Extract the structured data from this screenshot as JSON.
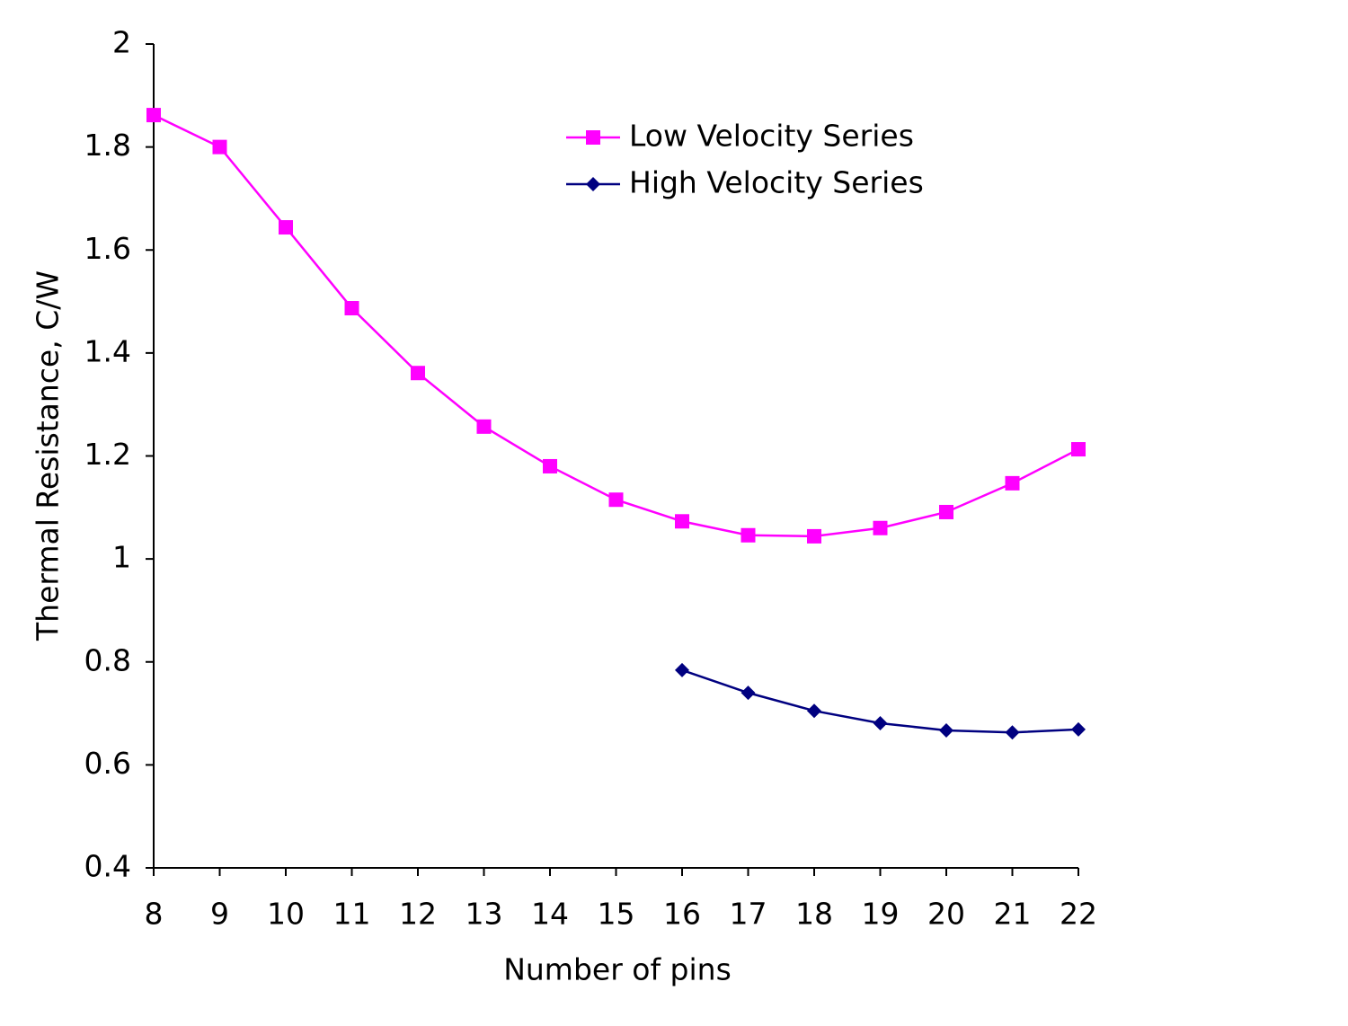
{
  "chart_data": {
    "type": "line",
    "x_label": "Number of pins",
    "y_label": "Thermal Resistance, C/W",
    "x": [
      8,
      9,
      10,
      11,
      12,
      13,
      14,
      15,
      16,
      17,
      18,
      19,
      20,
      21,
      22
    ],
    "xlim": [
      8,
      22
    ],
    "xticks": [
      8,
      9,
      10,
      11,
      12,
      13,
      14,
      15,
      16,
      17,
      18,
      19,
      20,
      21,
      22
    ],
    "ylim": [
      0.4,
      2
    ],
    "yticks": [
      0.4,
      0.6,
      0.8,
      1,
      1.2,
      1.4,
      1.6,
      1.8,
      2
    ],
    "grid": false,
    "legend": "upper-right",
    "series": [
      {
        "name": "Low Velocity Series",
        "color": "#ff00ff",
        "marker": "square",
        "values": [
          1.862,
          1.8,
          1.644,
          1.487,
          1.361,
          1.257,
          1.18,
          1.115,
          1.073,
          1.046,
          1.044,
          1.06,
          1.091,
          1.147,
          1.213
        ]
      },
      {
        "name": "High Velocity Series",
        "color": "#000080",
        "marker": "diamond",
        "values": [
          null,
          null,
          null,
          null,
          null,
          null,
          null,
          null,
          0.784,
          0.74,
          0.705,
          0.681,
          0.667,
          0.663,
          0.669
        ]
      }
    ]
  }
}
